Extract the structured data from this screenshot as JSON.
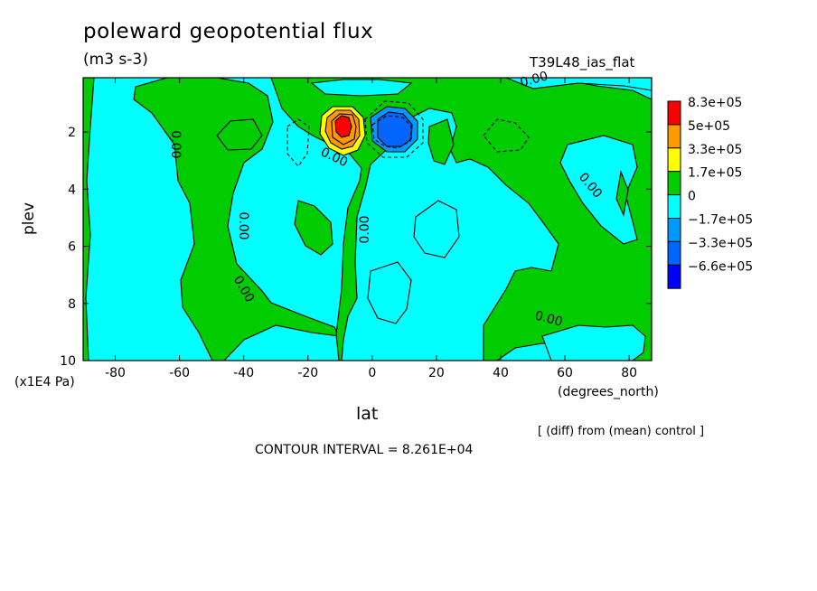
{
  "chart_data": {
    "type": "contour",
    "title": "poleward geopotential flux",
    "units": "(m3 s-3)",
    "run_label": "T39L48_ias_flat",
    "xlabel": "lat",
    "xunits": "(degrees_north)",
    "ylabel": "plev",
    "yunits": "(x1E4 Pa)",
    "xlim": [
      -90,
      87
    ],
    "ylim": [
      10,
      0.1
    ],
    "xticks": [
      "-80",
      "-60",
      "-40",
      "-20",
      "0",
      "20",
      "40",
      "60",
      "80"
    ],
    "xtick_values": [
      -80,
      -60,
      -40,
      -20,
      0,
      20,
      40,
      60,
      80
    ],
    "yticks": [
      "2",
      "4",
      "6",
      "8",
      "10"
    ],
    "ytick_values": [
      2,
      4,
      6,
      8,
      10
    ],
    "colorbar": {
      "labels": [
        "8.3e+05",
        "5e+05",
        "3.3e+05",
        "1.7e+05",
        "0",
        "−1.7e+05",
        "−3.3e+05",
        "−6.6e+05"
      ],
      "colors": [
        "#ff0000",
        "#ff9900",
        "#ffff00",
        "#00cc00",
        "#00ffff",
        "#0099ff",
        "#0066ff",
        "#0000ff"
      ]
    },
    "contour_labels": [
      "0.00",
      "0.00",
      "0.00",
      "0.00",
      "0.00",
      "0.00",
      "0.00",
      "0.00"
    ],
    "contour_interval_text": "CONTOUR INTERVAL = 8.261E+04",
    "note": "[ (diff) from (mean) control ]",
    "extrema": [
      {
        "lat": -8,
        "plev": 1.9,
        "sign": "positive",
        "max": 830000.0
      },
      {
        "lat": 8,
        "plev": 1.9,
        "sign": "negative",
        "min": -660000.0
      }
    ]
  },
  "colors": {
    "cyan": "#00ffff",
    "green": "#00cc00",
    "yellow": "#ffff00",
    "orange": "#ff9900",
    "red": "#ff0000",
    "blue_light": "#0099ff",
    "blue_mid": "#0066ff",
    "blue_dark": "#0000ff"
  }
}
